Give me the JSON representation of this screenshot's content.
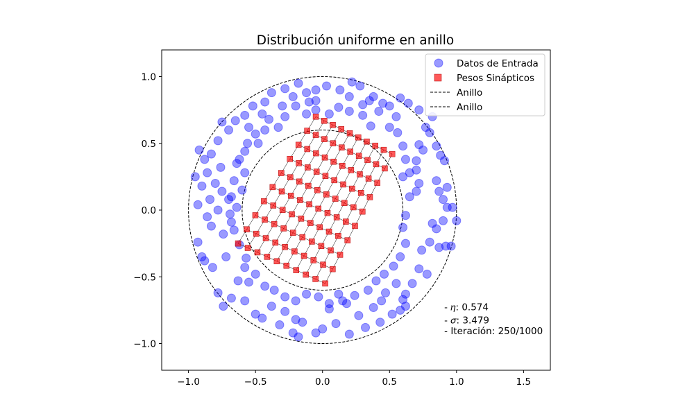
{
  "chart_data": {
    "type": "scatter",
    "title": "Distribución uniforme en anillo",
    "xlabel": "",
    "ylabel": "",
    "xlim": [
      -1.2,
      1.7
    ],
    "ylim": [
      -1.2,
      1.2
    ],
    "xticks": [
      -1.0,
      -0.5,
      0.0,
      0.5,
      1.0,
      1.5
    ],
    "yticks": [
      -1.0,
      -0.5,
      0.0,
      0.5,
      1.0
    ],
    "xtick_labels": [
      "−1.0",
      "−0.5",
      "0.0",
      "0.5",
      "1.0",
      "1.5"
    ],
    "ytick_labels": [
      "−1.0",
      "−0.5",
      "0.0",
      "0.5",
      "1.0"
    ],
    "grid": false,
    "legend_position": "top-right",
    "series": [
      {
        "name": "Datos de Entrada",
        "kind": "scatter",
        "marker": "circle",
        "color": "#0000ff",
        "points": [
          [
            -0.92,
            0.45
          ],
          [
            -0.88,
            0.38
          ],
          [
            -0.95,
            0.25
          ],
          [
            -0.9,
            0.18
          ],
          [
            -0.93,
            0.04
          ],
          [
            -0.86,
            -0.05
          ],
          [
            -0.93,
            -0.24
          ],
          [
            -0.88,
            -0.38
          ],
          [
            -0.82,
            -0.43
          ],
          [
            -0.78,
            -0.62
          ],
          [
            -0.74,
            -0.72
          ],
          [
            -0.68,
            -0.66
          ],
          [
            -0.63,
            -0.53
          ],
          [
            -0.58,
            -0.43
          ],
          [
            -0.55,
            -0.54
          ],
          [
            -0.5,
            -0.78
          ],
          [
            -0.45,
            -0.81
          ],
          [
            -0.38,
            -0.72
          ],
          [
            -0.32,
            -0.86
          ],
          [
            -0.28,
            -0.76
          ],
          [
            -0.22,
            -0.92
          ],
          [
            -0.18,
            -0.95
          ],
          [
            -0.15,
            -0.84
          ],
          [
            -0.05,
            -0.92
          ],
          [
            0.0,
            -0.89
          ],
          [
            0.05,
            -0.74
          ],
          [
            0.12,
            -0.63
          ],
          [
            0.18,
            -0.7
          ],
          [
            0.2,
            -0.93
          ],
          [
            0.27,
            -0.79
          ],
          [
            0.32,
            -0.88
          ],
          [
            0.38,
            -0.73
          ],
          [
            0.43,
            -0.84
          ],
          [
            0.47,
            -0.62
          ],
          [
            0.55,
            -0.55
          ],
          [
            0.52,
            -0.78
          ],
          [
            0.6,
            -0.67
          ],
          [
            0.62,
            -0.72
          ],
          [
            0.67,
            -0.55
          ],
          [
            0.72,
            -0.44
          ],
          [
            0.78,
            -0.48
          ],
          [
            0.74,
            -0.3
          ],
          [
            0.8,
            -0.24
          ],
          [
            0.87,
            -0.28
          ],
          [
            0.92,
            -0.27
          ],
          [
            0.96,
            -0.27
          ],
          [
            0.85,
            -0.14
          ],
          [
            0.9,
            -0.08
          ],
          [
            0.93,
            0.02
          ],
          [
            0.97,
            0.02
          ],
          [
            1.0,
            -0.08
          ],
          [
            0.87,
            0.14
          ],
          [
            0.93,
            0.17
          ],
          [
            0.85,
            0.22
          ],
          [
            0.72,
            0.2
          ],
          [
            0.7,
            0.14
          ],
          [
            0.65,
            0.28
          ],
          [
            0.7,
            0.37
          ],
          [
            0.72,
            0.49
          ],
          [
            0.8,
            0.58
          ],
          [
            0.77,
            0.62
          ],
          [
            0.85,
            0.48
          ],
          [
            0.88,
            0.41
          ],
          [
            0.91,
            0.37
          ],
          [
            0.82,
            0.7
          ],
          [
            0.72,
            0.75
          ],
          [
            0.64,
            0.8
          ],
          [
            0.58,
            0.84
          ],
          [
            0.5,
            0.78
          ],
          [
            0.45,
            0.8
          ],
          [
            0.35,
            0.82
          ],
          [
            0.28,
            0.93
          ],
          [
            0.22,
            0.96
          ],
          [
            0.13,
            0.9
          ],
          [
            0.03,
            0.93
          ],
          [
            -0.05,
            0.9
          ],
          [
            -0.12,
            0.88
          ],
          [
            -0.18,
            0.95
          ],
          [
            -0.22,
            0.85
          ],
          [
            -0.28,
            0.91
          ],
          [
            -0.38,
            0.88
          ],
          [
            -0.43,
            0.81
          ],
          [
            -0.52,
            0.78
          ],
          [
            -0.58,
            0.71
          ],
          [
            -0.65,
            0.67
          ],
          [
            -0.7,
            0.6
          ],
          [
            -0.75,
            0.66
          ],
          [
            -0.78,
            0.52
          ],
          [
            -0.83,
            0.42
          ],
          [
            -0.86,
            0.28
          ],
          [
            -0.8,
            0.2
          ],
          [
            -0.75,
            0.14
          ],
          [
            -0.7,
            0.08
          ],
          [
            -0.78,
            0.0
          ],
          [
            -0.83,
            -0.12
          ],
          [
            -0.74,
            -0.18
          ],
          [
            -0.68,
            -0.09
          ],
          [
            -0.64,
            0.02
          ],
          [
            -0.6,
            0.15
          ],
          [
            -0.58,
            0.28
          ],
          [
            -0.62,
            0.38
          ],
          [
            -0.56,
            0.5
          ],
          [
            -0.48,
            0.5
          ],
          [
            -0.43,
            0.6
          ],
          [
            -0.33,
            0.62
          ],
          [
            -0.28,
            0.7
          ],
          [
            -0.2,
            0.78
          ],
          [
            -0.12,
            0.72
          ],
          [
            -0.05,
            0.75
          ],
          [
            0.05,
            0.72
          ],
          [
            0.12,
            0.77
          ],
          [
            0.2,
            0.74
          ],
          [
            0.3,
            0.71
          ],
          [
            0.36,
            0.63
          ],
          [
            0.42,
            0.74
          ],
          [
            0.5,
            0.62
          ],
          [
            0.56,
            0.58
          ],
          [
            0.6,
            0.48
          ],
          [
            0.62,
            0.38
          ],
          [
            0.6,
            0.25
          ],
          [
            0.65,
            0.1
          ],
          [
            0.62,
            -0.04
          ],
          [
            0.6,
            -0.13
          ],
          [
            0.62,
            -0.25
          ],
          [
            0.58,
            -0.35
          ],
          [
            0.53,
            -0.42
          ],
          [
            0.46,
            -0.48
          ],
          [
            0.4,
            -0.53
          ],
          [
            0.34,
            -0.6
          ],
          [
            0.24,
            -0.64
          ],
          [
            0.15,
            -0.68
          ],
          [
            0.05,
            -0.7
          ],
          [
            -0.03,
            -0.65
          ],
          [
            -0.12,
            -0.63
          ],
          [
            -0.2,
            -0.68
          ],
          [
            -0.28,
            -0.65
          ],
          [
            -0.36,
            -0.6
          ],
          [
            -0.43,
            -0.57
          ],
          [
            -0.5,
            -0.48
          ],
          [
            -0.57,
            -0.36
          ],
          [
            -0.62,
            -0.26
          ],
          [
            -0.66,
            -0.15
          ],
          [
            -0.69,
            -0.03
          ],
          [
            -0.68,
            0.1
          ],
          [
            -0.66,
            0.22
          ],
          [
            -0.64,
            0.35
          ],
          [
            -0.58,
            0.44
          ],
          [
            -0.5,
            0.57
          ],
          [
            -0.4,
            0.68
          ],
          [
            -0.3,
            0.78
          ],
          [
            0.38,
            0.85
          ],
          [
            -0.1,
            0.81
          ],
          [
            0.62,
            -0.63
          ],
          [
            0.7,
            0.3
          ],
          [
            -0.84,
            0.08
          ],
          [
            -0.9,
            -0.35
          ],
          [
            -0.58,
            -0.68
          ],
          [
            0.1,
            -0.85
          ],
          [
            0.58,
            -0.75
          ],
          [
            0.82,
            -0.1
          ],
          [
            0.75,
            0.45
          ],
          [
            0.3,
            0.79
          ],
          [
            -0.45,
            0.72
          ],
          [
            -0.76,
            0.32
          ],
          [
            -0.72,
            -0.35
          ],
          [
            -0.2,
            -0.82
          ],
          [
            0.44,
            -0.68
          ],
          [
            0.9,
            0.08
          ],
          [
            0.55,
            0.7
          ],
          [
            -0.05,
            0.82
          ],
          [
            -0.55,
            0.62
          ],
          [
            0.2,
            0.85
          ]
        ]
      },
      {
        "name": "Pesos Sinápticos",
        "kind": "grid",
        "marker": "square",
        "color": "#ff0000",
        "rows": 10,
        "cols": 10,
        "corners": {
          "first_row_first": [
            -0.63,
            -0.25
          ],
          "first_row_last": [
            -0.05,
            0.7
          ],
          "last_row_first": [
            0.02,
            -0.55
          ],
          "last_row_last": [
            0.52,
            0.42
          ]
        }
      },
      {
        "name": "Anillo",
        "kind": "circle",
        "radius": 1.0,
        "style": "dashed",
        "color": "#000000"
      },
      {
        "name": "Anillo",
        "kind": "circle",
        "radius": 0.6,
        "style": "dashed",
        "color": "#000000"
      }
    ],
    "annotations": [
      {
        "text": "- 𝜂: 0.574",
        "x": 0.95,
        "y": -0.75
      },
      {
        "text": "- 𝜎: 3.479",
        "x": 0.95,
        "y": -0.85
      },
      {
        "text": "- Iteración: 250/1000",
        "x": 0.95,
        "y": -0.93
      }
    ]
  }
}
